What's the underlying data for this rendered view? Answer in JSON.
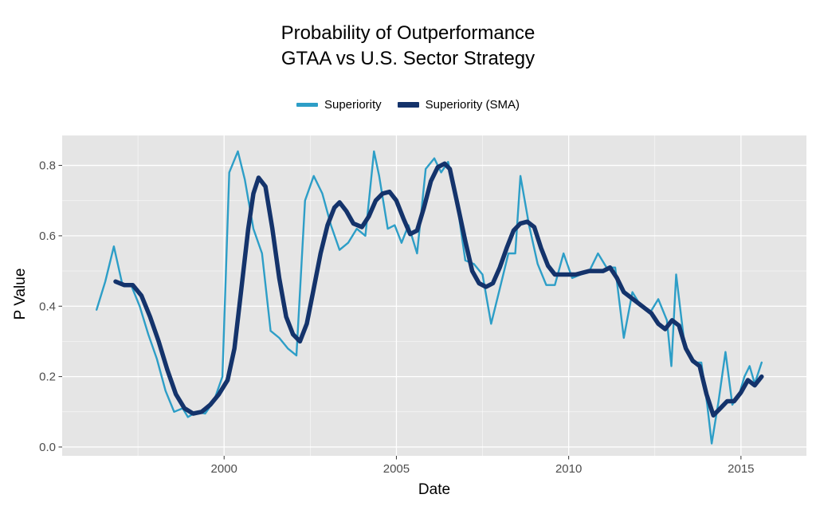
{
  "title": {
    "line1": "Probability of Outperformance",
    "line2": "GTAA vs U.S. Sector Strategy"
  },
  "legend": {
    "items": [
      {
        "label": "Superiority",
        "color": "#2D9EC7"
      },
      {
        "label": "Superiority (SMA)",
        "color": "#14336B"
      }
    ]
  },
  "chart_data": {
    "type": "line",
    "title": "Probability of Outperformance GTAA vs U.S. Sector Strategy",
    "xlabel": "Date",
    "ylabel": "P Value",
    "xlim": [
      1995.3,
      2016.9
    ],
    "ylim": [
      -0.025,
      0.885
    ],
    "grid": true,
    "legend_position": "top",
    "panel_background": "#E5E5E5",
    "grid_color": "#FFFFFF",
    "tick_color": "#333333",
    "tick_label_color": "#4D4D4D",
    "x_major_ticks": [
      2000,
      2005,
      2010,
      2015
    ],
    "x_tick_labels": [
      "2000",
      "2005",
      "2010",
      "2015"
    ],
    "x_minor_ticks": [
      1997.5,
      2002.5,
      2007.5,
      2012.5
    ],
    "y_major_ticks": [
      0.0,
      0.2,
      0.4,
      0.6,
      0.8
    ],
    "y_tick_labels": [
      "0.0",
      "0.2",
      "0.4",
      "0.6",
      "0.8"
    ],
    "y_minor_ticks": [
      0.1,
      0.3,
      0.5,
      0.7
    ],
    "series": [
      {
        "name": "Superiority",
        "color": "#2D9EC7",
        "width": 2.4,
        "points": [
          [
            1996.3,
            0.39
          ],
          [
            1996.55,
            0.47
          ],
          [
            1996.8,
            0.57
          ],
          [
            1997.05,
            0.46
          ],
          [
            1997.3,
            0.46
          ],
          [
            1997.55,
            0.4
          ],
          [
            1997.8,
            0.32
          ],
          [
            1998.05,
            0.25
          ],
          [
            1998.3,
            0.16
          ],
          [
            1998.55,
            0.1
          ],
          [
            1998.8,
            0.11
          ],
          [
            1998.95,
            0.085
          ],
          [
            1999.2,
            0.1
          ],
          [
            1999.45,
            0.095
          ],
          [
            1999.7,
            0.13
          ],
          [
            1999.95,
            0.2
          ],
          [
            2000.15,
            0.78
          ],
          [
            2000.4,
            0.84
          ],
          [
            2000.6,
            0.76
          ],
          [
            2000.85,
            0.62
          ],
          [
            2001.1,
            0.55
          ],
          [
            2001.35,
            0.33
          ],
          [
            2001.6,
            0.31
          ],
          [
            2001.85,
            0.28
          ],
          [
            2002.1,
            0.26
          ],
          [
            2002.35,
            0.7
          ],
          [
            2002.6,
            0.77
          ],
          [
            2002.85,
            0.72
          ],
          [
            2003.1,
            0.63
          ],
          [
            2003.35,
            0.56
          ],
          [
            2003.6,
            0.58
          ],
          [
            2003.85,
            0.62
          ],
          [
            2004.1,
            0.6
          ],
          [
            2004.35,
            0.84
          ],
          [
            2004.5,
            0.77
          ],
          [
            2004.75,
            0.62
          ],
          [
            2004.95,
            0.63
          ],
          [
            2005.15,
            0.58
          ],
          [
            2005.35,
            0.63
          ],
          [
            2005.6,
            0.55
          ],
          [
            2005.85,
            0.79
          ],
          [
            2006.1,
            0.82
          ],
          [
            2006.3,
            0.78
          ],
          [
            2006.5,
            0.81
          ],
          [
            2006.75,
            0.7
          ],
          [
            2007.0,
            0.53
          ],
          [
            2007.25,
            0.52
          ],
          [
            2007.5,
            0.49
          ],
          [
            2007.75,
            0.35
          ],
          [
            2008.0,
            0.45
          ],
          [
            2008.25,
            0.55
          ],
          [
            2008.45,
            0.55
          ],
          [
            2008.6,
            0.77
          ],
          [
            2008.85,
            0.63
          ],
          [
            2009.1,
            0.52
          ],
          [
            2009.35,
            0.46
          ],
          [
            2009.6,
            0.46
          ],
          [
            2009.85,
            0.55
          ],
          [
            2010.1,
            0.48
          ],
          [
            2010.35,
            0.49
          ],
          [
            2010.6,
            0.5
          ],
          [
            2010.85,
            0.55
          ],
          [
            2011.1,
            0.51
          ],
          [
            2011.35,
            0.51
          ],
          [
            2011.6,
            0.31
          ],
          [
            2011.85,
            0.44
          ],
          [
            2012.1,
            0.4
          ],
          [
            2012.35,
            0.38
          ],
          [
            2012.6,
            0.42
          ],
          [
            2012.85,
            0.36
          ],
          [
            2012.98,
            0.23
          ],
          [
            2013.12,
            0.49
          ],
          [
            2013.35,
            0.3
          ],
          [
            2013.6,
            0.24
          ],
          [
            2013.85,
            0.24
          ],
          [
            2014.02,
            0.12
          ],
          [
            2014.15,
            0.01
          ],
          [
            2014.35,
            0.13
          ],
          [
            2014.55,
            0.27
          ],
          [
            2014.75,
            0.12
          ],
          [
            2014.95,
            0.15
          ],
          [
            2015.1,
            0.2
          ],
          [
            2015.25,
            0.23
          ],
          [
            2015.4,
            0.18
          ],
          [
            2015.6,
            0.24
          ]
        ]
      },
      {
        "name": "Superiority (SMA)",
        "color": "#14336B",
        "width": 5.5,
        "points": [
          [
            1996.85,
            0.47
          ],
          [
            1997.1,
            0.46
          ],
          [
            1997.35,
            0.46
          ],
          [
            1997.6,
            0.43
          ],
          [
            1997.85,
            0.37
          ],
          [
            1998.1,
            0.3
          ],
          [
            1998.35,
            0.22
          ],
          [
            1998.6,
            0.15
          ],
          [
            1998.85,
            0.11
          ],
          [
            1999.1,
            0.095
          ],
          [
            1999.35,
            0.1
          ],
          [
            1999.6,
            0.12
          ],
          [
            1999.85,
            0.15
          ],
          [
            2000.1,
            0.19
          ],
          [
            2000.3,
            0.28
          ],
          [
            2000.5,
            0.45
          ],
          [
            2000.7,
            0.62
          ],
          [
            2000.85,
            0.72
          ],
          [
            2001.0,
            0.765
          ],
          [
            2001.2,
            0.74
          ],
          [
            2001.4,
            0.62
          ],
          [
            2001.6,
            0.48
          ],
          [
            2001.8,
            0.37
          ],
          [
            2002.0,
            0.32
          ],
          [
            2002.2,
            0.3
          ],
          [
            2002.4,
            0.35
          ],
          [
            2002.6,
            0.45
          ],
          [
            2002.8,
            0.55
          ],
          [
            2003.0,
            0.63
          ],
          [
            2003.2,
            0.68
          ],
          [
            2003.35,
            0.695
          ],
          [
            2003.55,
            0.67
          ],
          [
            2003.75,
            0.635
          ],
          [
            2004.0,
            0.625
          ],
          [
            2004.2,
            0.655
          ],
          [
            2004.4,
            0.7
          ],
          [
            2004.6,
            0.72
          ],
          [
            2004.8,
            0.725
          ],
          [
            2005.0,
            0.7
          ],
          [
            2005.2,
            0.65
          ],
          [
            2005.4,
            0.605
          ],
          [
            2005.6,
            0.615
          ],
          [
            2005.8,
            0.68
          ],
          [
            2006.0,
            0.755
          ],
          [
            2006.2,
            0.795
          ],
          [
            2006.4,
            0.805
          ],
          [
            2006.55,
            0.79
          ],
          [
            2006.75,
            0.7
          ],
          [
            2007.0,
            0.585
          ],
          [
            2007.2,
            0.5
          ],
          [
            2007.4,
            0.465
          ],
          [
            2007.6,
            0.455
          ],
          [
            2007.8,
            0.465
          ],
          [
            2008.0,
            0.51
          ],
          [
            2008.2,
            0.565
          ],
          [
            2008.4,
            0.615
          ],
          [
            2008.6,
            0.635
          ],
          [
            2008.8,
            0.64
          ],
          [
            2009.0,
            0.625
          ],
          [
            2009.2,
            0.565
          ],
          [
            2009.4,
            0.515
          ],
          [
            2009.6,
            0.49
          ],
          [
            2009.8,
            0.49
          ],
          [
            2010.0,
            0.49
          ],
          [
            2010.2,
            0.49
          ],
          [
            2010.4,
            0.495
          ],
          [
            2010.6,
            0.5
          ],
          [
            2010.8,
            0.5
          ],
          [
            2011.0,
            0.5
          ],
          [
            2011.2,
            0.51
          ],
          [
            2011.4,
            0.48
          ],
          [
            2011.6,
            0.44
          ],
          [
            2011.8,
            0.425
          ],
          [
            2012.0,
            0.41
          ],
          [
            2012.2,
            0.395
          ],
          [
            2012.4,
            0.38
          ],
          [
            2012.6,
            0.35
          ],
          [
            2012.8,
            0.335
          ],
          [
            2013.0,
            0.36
          ],
          [
            2013.2,
            0.345
          ],
          [
            2013.4,
            0.28
          ],
          [
            2013.6,
            0.245
          ],
          [
            2013.8,
            0.23
          ],
          [
            2014.0,
            0.15
          ],
          [
            2014.2,
            0.09
          ],
          [
            2014.4,
            0.11
          ],
          [
            2014.6,
            0.13
          ],
          [
            2014.8,
            0.13
          ],
          [
            2015.0,
            0.155
          ],
          [
            2015.2,
            0.19
          ],
          [
            2015.4,
            0.175
          ],
          [
            2015.6,
            0.2
          ]
        ]
      }
    ]
  }
}
